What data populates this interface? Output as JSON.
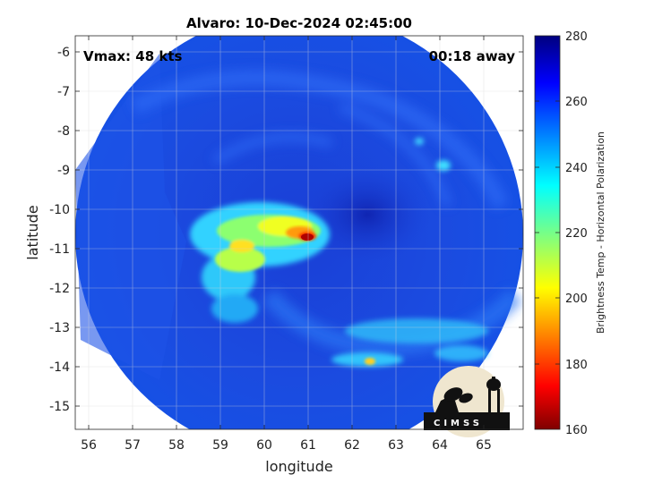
{
  "figure": {
    "title": "Alvaro: 10-Dec-2024 02:45:00",
    "vmax_label": "Vmax: 48 kts",
    "away_label": "00:18 away"
  },
  "axes": {
    "xlabel": "longitude",
    "ylabel": "latitude",
    "xticks": [
      "56",
      "57",
      "58",
      "59",
      "60",
      "61",
      "62",
      "63",
      "64",
      "65"
    ],
    "yticks": [
      "-6",
      "-7",
      "-8",
      "-9",
      "-10",
      "-11",
      "-12",
      "-13",
      "-14",
      "-15"
    ]
  },
  "colorbar": {
    "label": "Brightness Temp - Horizontal Polarization",
    "ticks": [
      "280",
      "260",
      "240",
      "220",
      "200",
      "180",
      "160"
    ],
    "colormap": "jet"
  },
  "logo": {
    "text": "CIMSS"
  },
  "chart_data": {
    "type": "heatmap",
    "title": "Alvaro: 10-Dec-2024 02:45:00",
    "xlabel": "longitude",
    "ylabel": "latitude",
    "xlim": [
      55.6,
      65.8
    ],
    "ylim": [
      -15.55,
      -5.6
    ],
    "clim": [
      160,
      280
    ],
    "grid": true,
    "colorbar_label": "Brightness Temp - Horizontal Polarization",
    "annotations": [
      "Vmax: 48 kts",
      "00:18 away"
    ],
    "swath": {
      "center_lon": 60.8,
      "center_lat": -10.2,
      "radius_deg": 5.0
    },
    "coldest_core": {
      "lon": 60.95,
      "lat": -10.65,
      "brightness_temp": 165
    },
    "cold_band_lon_range": [
      58.7,
      61.2
    ],
    "cold_band_lat_range": [
      -11.6,
      -10.1
    ],
    "background_brightness_temp": 262
  }
}
